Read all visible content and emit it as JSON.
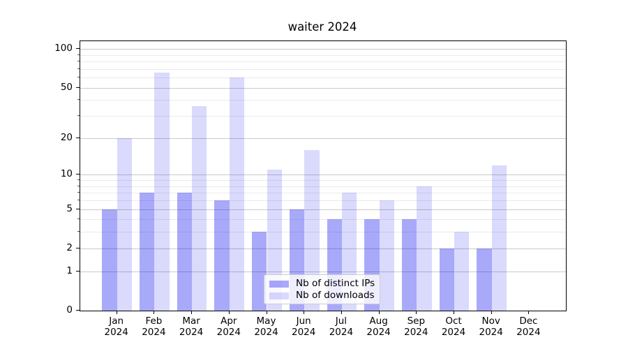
{
  "chart_data": {
    "type": "bar",
    "title": "waiter 2024",
    "categories": [
      "Jan 2024",
      "Feb 2024",
      "Mar 2024",
      "Apr 2024",
      "May 2024",
      "Jun 2024",
      "Jul 2024",
      "Aug 2024",
      "Sep 2024",
      "Oct 2024",
      "Nov 2024",
      "Dec 2024"
    ],
    "months": [
      "Jan",
      "Feb",
      "Mar",
      "Apr",
      "May",
      "Jun",
      "Jul",
      "Aug",
      "Sep",
      "Oct",
      "Nov",
      "Dec"
    ],
    "year_label": "2024",
    "series": [
      {
        "name": "Nb of distinct IPs",
        "color": "rgba(10,10,240,0.35)",
        "values": [
          5,
          7,
          7,
          6,
          3,
          5,
          4,
          4,
          4,
          2,
          2,
          0
        ]
      },
      {
        "name": "Nb of downloads",
        "color": "rgba(10,10,240,0.15)",
        "values": [
          20,
          66,
          36,
          60,
          11,
          16,
          7,
          6,
          8,
          3,
          12,
          0
        ]
      }
    ],
    "y_axis": {
      "scale": "log1p",
      "ticks": [
        0,
        1,
        2,
        5,
        10,
        20,
        50,
        100
      ],
      "minor_gridlines": [
        3,
        4,
        6,
        7,
        8,
        9,
        30,
        40,
        60,
        70,
        80,
        90
      ],
      "top_value": 115
    },
    "legend": {
      "position": "lower-center",
      "frame": true
    },
    "grid": {
      "major_color": "#c9c9c9",
      "minor_color": "#eaeaea",
      "visible": true
    },
    "colors": {
      "spine": "#000000",
      "text": "#000000",
      "background": "#ffffff"
    }
  }
}
